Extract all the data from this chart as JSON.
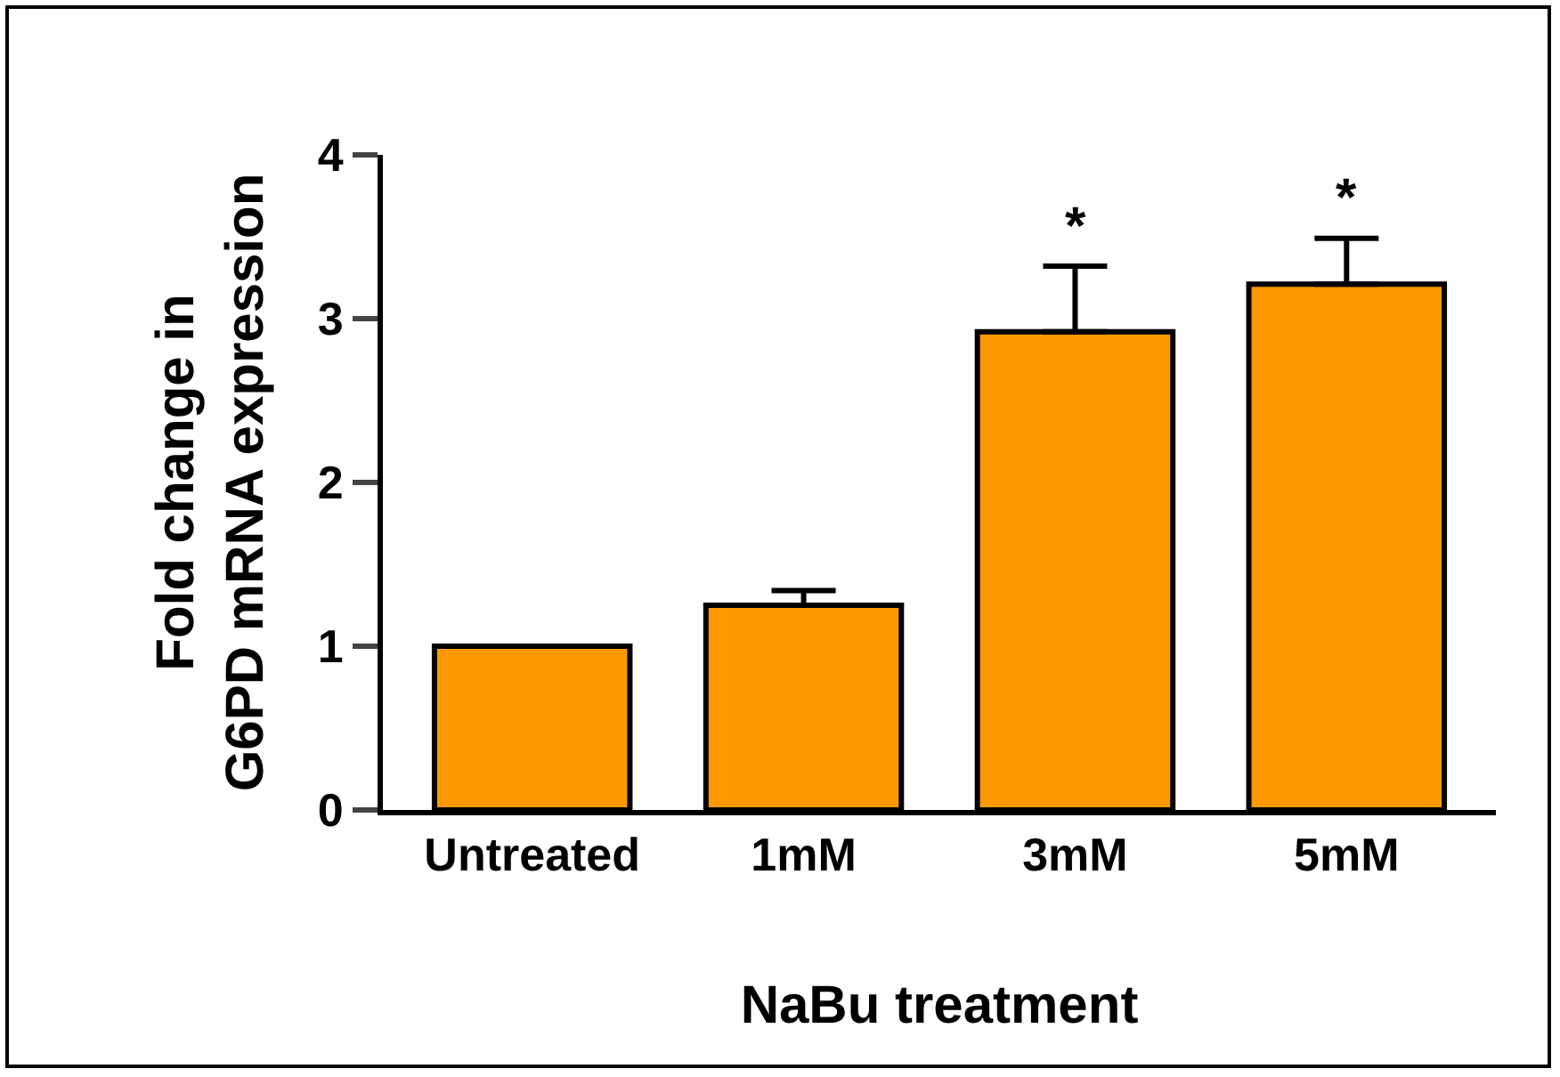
{
  "chart_data": {
    "type": "bar",
    "xlabel": "NaBu treatment",
    "ylabel": "Fold change in\nG6PD mRNA expression",
    "categories": [
      "Untreated",
      "1mM",
      "3mM",
      "5mM"
    ],
    "values": [
      1.0,
      1.25,
      2.92,
      3.21
    ],
    "errors": [
      null,
      0.09,
      0.4,
      0.28
    ],
    "color": "#ff9900",
    "ylim": [
      0,
      4
    ],
    "yticks": [
      0,
      1,
      2,
      3,
      4
    ],
    "grid": false,
    "annotations": [
      {
        "text": "*",
        "x": "3mM",
        "y": 3.32
      },
      {
        "text": "*",
        "x": "5mM",
        "y": 3.49
      }
    ]
  }
}
